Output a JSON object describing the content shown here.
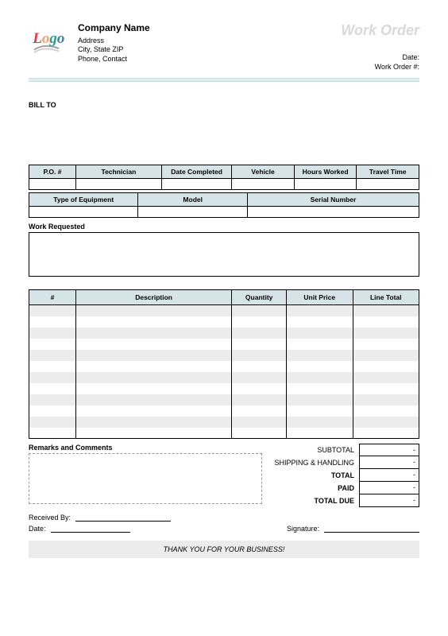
{
  "header": {
    "company_name": "Company Name",
    "address": "Address",
    "city_state_zip": "City, State ZIP",
    "phone": "Phone, Contact",
    "doc_title": "Work Order",
    "date_label": "Date:",
    "wo_number_label": "Work Order #:"
  },
  "bill_to_label": "BILL TO",
  "info1": {
    "columns": [
      "P.O. #",
      "Technician",
      "Date Completed",
      "Vehicle",
      "Hours Worked",
      "Travel Time"
    ],
    "widths_pct": [
      12,
      22,
      18,
      16,
      16,
      16
    ]
  },
  "info2": {
    "columns": [
      "Type of Equipment",
      "Model",
      "Serial Number"
    ],
    "widths_pct": [
      28,
      28,
      44
    ]
  },
  "work_requested_label": "Work Requested",
  "items": {
    "columns": [
      "#",
      "Description",
      "Quantity",
      "Unit Price",
      "Line Total"
    ],
    "widths_pct": [
      12,
      40,
      14,
      17,
      17
    ],
    "row_count": 12,
    "stripe_color": "#ececec",
    "header_bg": "#d6e4e8"
  },
  "remarks_label": "Remarks and Comments",
  "totals": {
    "rows": [
      {
        "label": "SUBTOTAL",
        "value": "-",
        "bold": false
      },
      {
        "label": "SHIPPING & HANDLING",
        "value": "-",
        "bold": false
      },
      {
        "label": "TOTAL",
        "value": "-",
        "bold": true
      },
      {
        "label": "PAID",
        "value": "-",
        "bold": true
      },
      {
        "label": "TOTAL DUE",
        "value": "-",
        "bold": true
      }
    ]
  },
  "signoff": {
    "received_by_label": "Received By:",
    "date_label": "Date:",
    "signature_label": "Signature:"
  },
  "thanks": "THANK YOU FOR YOUR BUSINESS!",
  "colors": {
    "header_rule": "#cfe2e6",
    "title_gray": "#d9d9d9",
    "table_header_bg": "#d6e4e8",
    "stripe": "#ececec",
    "border": "#000000"
  }
}
